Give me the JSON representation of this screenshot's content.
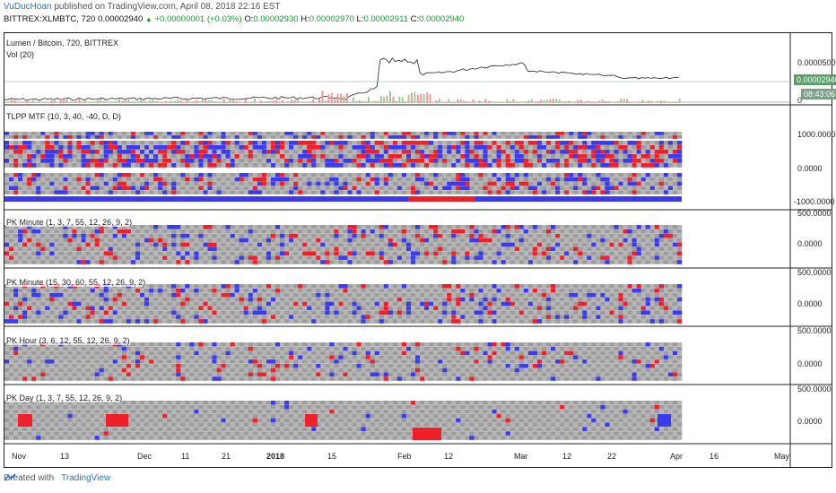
{
  "header": {
    "author": "VuDucHoan",
    "published": "published on TradingView.com, April 08, 2018 22:16 EST",
    "symbol": "BITTREX:XLMBTC, 720",
    "last": "0.00002940",
    "change": "+0.00000001 (+0.03%)",
    "o_label": "O:",
    "o": "0.00002930",
    "h_label": "H:",
    "h": "0.00002970",
    "l_label": "L:",
    "l": "0.00002911",
    "c_label": "C:",
    "c": "0.00002940"
  },
  "panes": {
    "price": {
      "title": "Lumen / Bitcoin, 720, BITTREX",
      "vol": "Vol (20)",
      "ticks": [
        "0.00005000",
        "0"
      ],
      "price_tag": "0.00002940",
      "time_tag": "08:43:06"
    },
    "tlpp": {
      "title": "TLPP MTF (10, 3, 40, -40, D, D)",
      "ticks": [
        "1000.0000",
        "0.0000",
        "-1000.0000"
      ]
    },
    "pk1": {
      "title": "PK Minute (1, 3, 7, 55, 12, 26, 9, 2)",
      "ticks": [
        "500.0000",
        "0.0000"
      ]
    },
    "pk2": {
      "title": "PK Minute (15, 30, 60, 55, 12, 26, 9, 2)",
      "ticks": [
        "500.0000",
        "0.0000"
      ]
    },
    "pk3": {
      "title": "PK Hour (3, 6, 12, 55, 12, 26, 9, 2)",
      "ticks": [
        "500.0000",
        "0.0000"
      ]
    },
    "pk4": {
      "title": "PK Day (1, 3, 7, 55, 12, 26, 9, 2)",
      "ticks": [
        "500.0000",
        "0.0000"
      ]
    }
  },
  "xaxis": [
    "Nov",
    "13",
    "Dec",
    "11",
    "21",
    "2018",
    "15",
    "Feb",
    "12",
    "Mar",
    "12",
    "22",
    "Apr",
    "16",
    "May"
  ],
  "footer": {
    "created": "Created with",
    "brand": "TradingView"
  },
  "colors": {
    "up": "#1a9c2e",
    "red": "#f0202a",
    "blue": "#3a3aee",
    "grey": "#a8a8a8",
    "price_tag_bg": "#5aa06a",
    "time_tag_bg": "#7a9e88"
  }
}
